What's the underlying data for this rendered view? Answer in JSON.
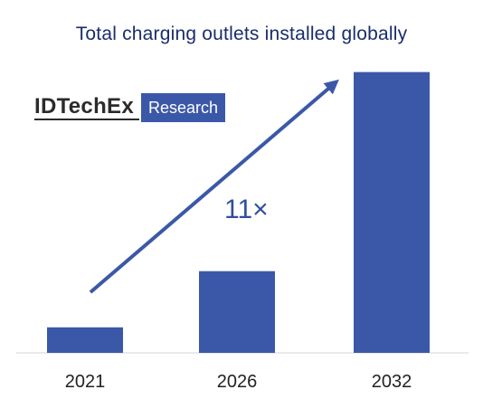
{
  "chart_data": {
    "type": "bar",
    "title": "Total charging outlets installed globally",
    "categories": [
      "2021",
      "2026",
      "2032"
    ],
    "values": [
      1,
      3.2,
      11
    ],
    "xlabel": "",
    "ylabel": "",
    "ylim": [
      0,
      11.2
    ],
    "grid": false,
    "annotation": "11×",
    "colors": {
      "bar": "#3b58a8",
      "arrow": "#3b58a8",
      "title": "#1b2d6b"
    }
  },
  "logo": {
    "brand": "IDTechEx",
    "tag": "Research"
  }
}
